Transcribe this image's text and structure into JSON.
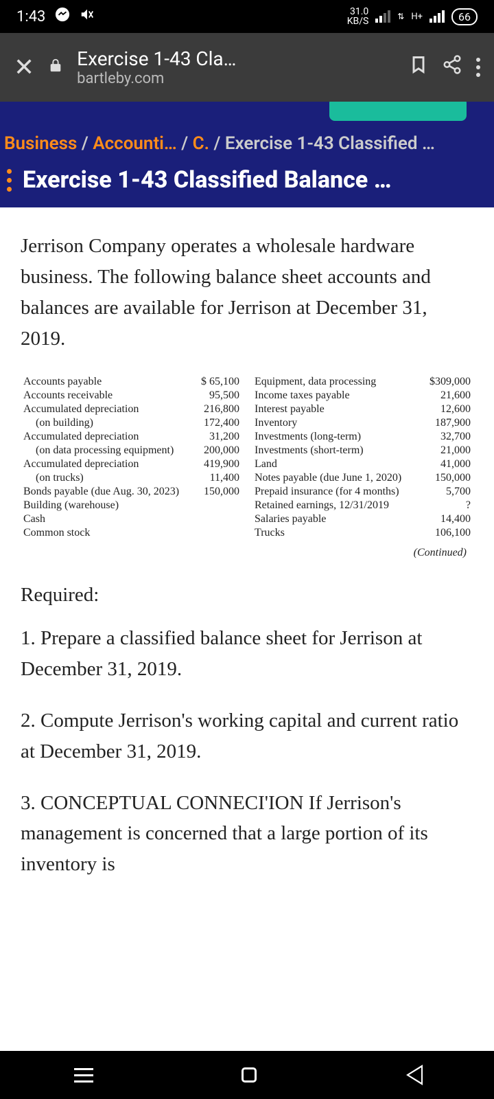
{
  "status": {
    "time": "1:43",
    "data_rate_top": "31.0",
    "data_rate_bottom": "KB/S",
    "network_label": "H+",
    "battery": "66"
  },
  "browser": {
    "title": "Exercise 1-43 Cla…",
    "domain": "bartleby.com"
  },
  "breadcrumb": {
    "a": "Business",
    "b": "Accounti…",
    "c": "C.",
    "d": "Exercise 1-43 Classified …"
  },
  "page_title": "Exercise 1-43 Classified Balance …",
  "intro": "Jerrison Company operates a wholesale hardware business. The following balance sheet accounts and balances are available for Jerrison at December 31, 2019.",
  "left_items": [
    {
      "l": "Accounts payable",
      "v": "$ 65,100"
    },
    {
      "l": "Accounts receivable",
      "v": "95,500"
    },
    {
      "l": "Accumulated depreciation",
      "v": ""
    },
    {
      "l": "(on building)",
      "v": "216,800",
      "indent": true
    },
    {
      "l": "Accumulated depreciation",
      "v": ""
    },
    {
      "l": "(on data processing equipment)",
      "v": "172,400",
      "indent": true
    },
    {
      "l": "Accumulated depreciation",
      "v": "31,200"
    },
    {
      "l": "(on trucks)",
      "v": "",
      "indent": true
    },
    {
      "l": "Bonds payable (due Aug. 30, 2023)",
      "v": "200,000"
    },
    {
      "l": "Building (warehouse)",
      "v": "419,900"
    },
    {
      "l": "Cash",
      "v": "11,400"
    },
    {
      "l": "Common stock",
      "v": "150,000"
    }
  ],
  "right_items": [
    {
      "l": "Equipment, data processing",
      "v": "$309,000"
    },
    {
      "l": "Income taxes payable",
      "v": "21,600"
    },
    {
      "l": "Interest payable",
      "v": "12,600"
    },
    {
      "l": "Inventory",
      "v": "187,900"
    },
    {
      "l": "Investments (long-term)",
      "v": "32,700"
    },
    {
      "l": "Investments (short-term)",
      "v": "21,000"
    },
    {
      "l": "Land",
      "v": "41,000"
    },
    {
      "l": "Notes payable (due June 1, 2020)",
      "v": "150,000"
    },
    {
      "l": "Prepaid insurance (for 4 months)",
      "v": "5,700"
    },
    {
      "l": "Retained earnings, 12/31/2019",
      "v": "?"
    },
    {
      "l": "Salaries payable",
      "v": "14,400"
    },
    {
      "l": "Trucks",
      "v": "106,100"
    }
  ],
  "continued": "(Continued)",
  "required_heading": "Required:",
  "req1": "1. Prepare a classified balance sheet for Jerrison at December 31, 2019.",
  "req2": "2. Compute Jerrison's working capital and current ratio at December 31, 2019.",
  "req3": "3. CONCEPTUAL CONNECI'ION If Jerrison's management is concerned that a large portion of its inventory is"
}
